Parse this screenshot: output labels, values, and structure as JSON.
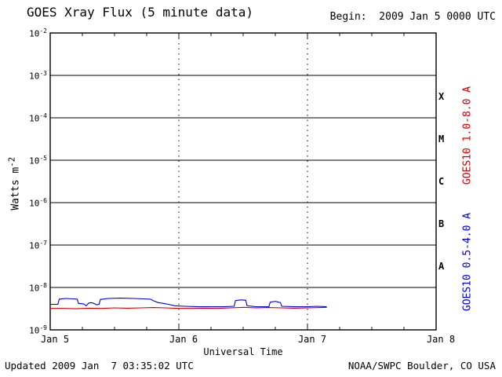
{
  "chart_data": {
    "type": "line",
    "title": "GOES Xray Flux (5 minute data)",
    "begin_label": "Begin:  2009 Jan 5 0000 UTC",
    "updated_label": "Updated 2009 Jan  7 03:35:02 UTC",
    "credit_label": "NOAA/SWPC Boulder, CO USA",
    "xlabel": "Universal Time",
    "ylabel": {
      "text": "Watts m-2",
      "base": "Watts m",
      "exp": "-2"
    },
    "background_color": "#ffffff",
    "axis_color": "#000000",
    "grid": {
      "horizontal": "solid-per-decade",
      "vertical": "dotted-per-day"
    },
    "y_axis": {
      "scale": "log",
      "ylim": [
        1e-09,
        0.01
      ],
      "tick_exponents": [
        -2,
        -3,
        -4,
        -5,
        -6,
        -7,
        -8,
        -9
      ]
    },
    "x_axis": {
      "range_days": [
        5,
        8
      ],
      "minor_tick_hours": 6,
      "ticks": [
        {
          "label": "Jan 5",
          "day": 5
        },
        {
          "label": "Jan 6",
          "day": 6
        },
        {
          "label": "Jan 7",
          "day": 7
        },
        {
          "label": "Jan 8",
          "day": 8
        }
      ]
    },
    "flare_classes": [
      {
        "label": "X",
        "log_center": -3.5
      },
      {
        "label": "M",
        "log_center": -4.5
      },
      {
        "label": "C",
        "log_center": -5.5
      },
      {
        "label": "B",
        "log_center": -6.5
      },
      {
        "label": "A",
        "log_center": -7.5
      }
    ],
    "series": [
      {
        "name": "goes10-long",
        "label": "GOES10 1.0-8.0 A",
        "color": "#cc0000",
        "points": [
          [
            5.0,
            3.2e-09
          ],
          [
            5.1,
            3.2e-09
          ],
          [
            5.2,
            3.15e-09
          ],
          [
            5.3,
            3.25e-09
          ],
          [
            5.4,
            3.2e-09
          ],
          [
            5.5,
            3.3e-09
          ],
          [
            5.6,
            3.25e-09
          ],
          [
            5.7,
            3.3e-09
          ],
          [
            5.8,
            3.35e-09
          ],
          [
            5.9,
            3.3e-09
          ],
          [
            6.0,
            3.2e-09
          ],
          [
            6.1,
            3.2e-09
          ],
          [
            6.2,
            3.25e-09
          ],
          [
            6.3,
            3.2e-09
          ],
          [
            6.4,
            3.3e-09
          ],
          [
            6.5,
            3.4e-09
          ],
          [
            6.6,
            3.3e-09
          ],
          [
            6.7,
            3.35e-09
          ],
          [
            6.8,
            3.3e-09
          ],
          [
            6.9,
            3.25e-09
          ],
          [
            7.0,
            3.3e-09
          ],
          [
            7.1,
            3.35e-09
          ],
          [
            7.15,
            3.4e-09
          ]
        ]
      },
      {
        "name": "goes10-short",
        "label": "GOES10 0.5-4.0 A",
        "color": "#0000cc",
        "points": [
          [
            5.0,
            4e-09
          ],
          [
            5.06,
            4e-09
          ],
          [
            5.07,
            5.3e-09
          ],
          [
            5.12,
            5.5e-09
          ],
          [
            5.18,
            5.4e-09
          ],
          [
            5.21,
            5.3e-09
          ],
          [
            5.22,
            4.2e-09
          ],
          [
            5.26,
            4.1e-09
          ],
          [
            5.28,
            3.7e-09
          ],
          [
            5.3,
            4.3e-09
          ],
          [
            5.32,
            4.4e-09
          ],
          [
            5.34,
            4.2e-09
          ],
          [
            5.36,
            3.9e-09
          ],
          [
            5.38,
            4e-09
          ],
          [
            5.39,
            5.2e-09
          ],
          [
            5.45,
            5.5e-09
          ],
          [
            5.55,
            5.6e-09
          ],
          [
            5.65,
            5.5e-09
          ],
          [
            5.72,
            5.4e-09
          ],
          [
            5.78,
            5.3e-09
          ],
          [
            5.8,
            4.9e-09
          ],
          [
            5.84,
            4.4e-09
          ],
          [
            5.88,
            4.2e-09
          ],
          [
            5.92,
            4e-09
          ],
          [
            5.97,
            3.7e-09
          ],
          [
            6.05,
            3.6e-09
          ],
          [
            6.15,
            3.5e-09
          ],
          [
            6.25,
            3.5e-09
          ],
          [
            6.35,
            3.5e-09
          ],
          [
            6.43,
            3.6e-09
          ],
          [
            6.44,
            4.9e-09
          ],
          [
            6.48,
            5.1e-09
          ],
          [
            6.52,
            5e-09
          ],
          [
            6.53,
            3.7e-09
          ],
          [
            6.6,
            3.5e-09
          ],
          [
            6.7,
            3.5e-09
          ],
          [
            6.71,
            4.5e-09
          ],
          [
            6.75,
            4.7e-09
          ],
          [
            6.79,
            4.4e-09
          ],
          [
            6.8,
            3.6e-09
          ],
          [
            6.9,
            3.5e-09
          ],
          [
            7.0,
            3.5e-09
          ],
          [
            7.08,
            3.6e-09
          ],
          [
            7.15,
            3.5e-09
          ]
        ]
      }
    ]
  }
}
